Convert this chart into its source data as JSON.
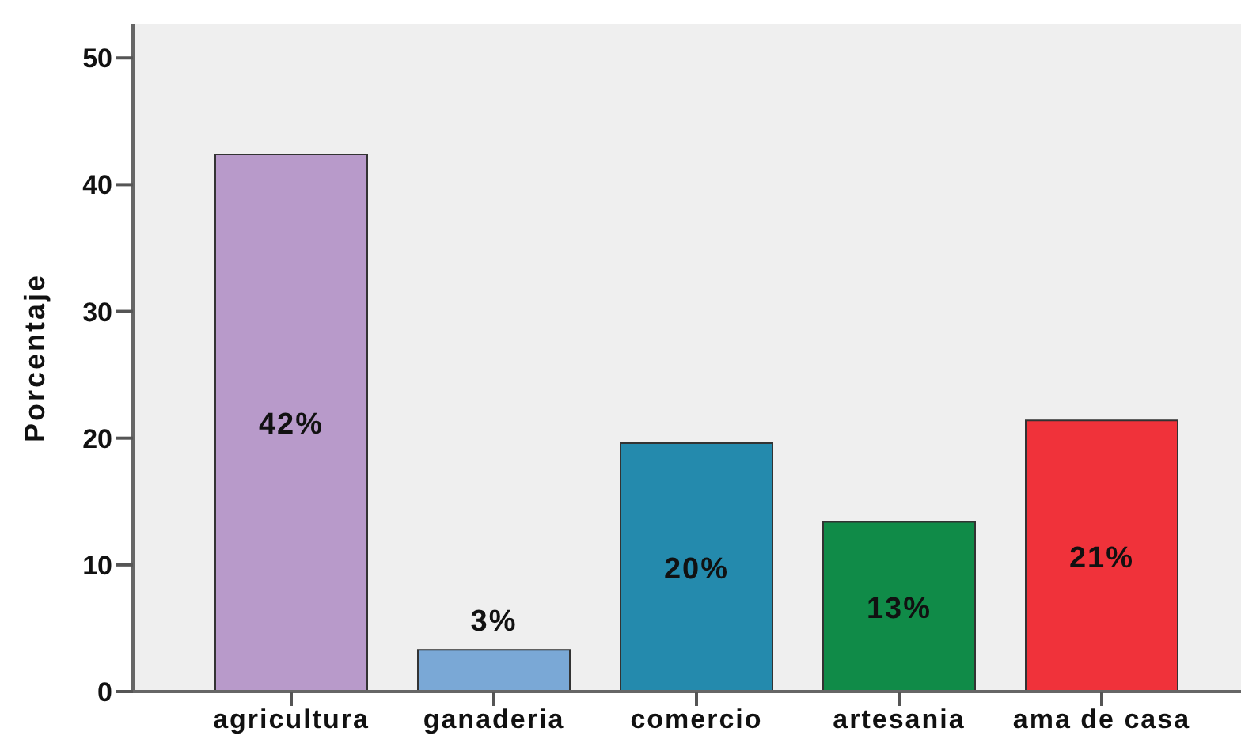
{
  "chart_data": {
    "type": "bar",
    "ylabel": "Porcentaje",
    "categories": [
      "agricultura",
      "ganaderia",
      "comercio",
      "artesania",
      "ama de casa"
    ],
    "values": [
      42.4,
      3.3,
      19.6,
      13.4,
      21.4
    ],
    "colors": [
      "#b89aca",
      "#7aa8d6",
      "#248aad",
      "#108b48",
      "#f0323a"
    ],
    "value_labels": [
      "42%",
      "3%",
      "20%",
      "13%",
      "21%"
    ],
    "ylim": [
      0,
      52.7
    ],
    "yticks": [
      0,
      10,
      20,
      30,
      40,
      50
    ]
  }
}
